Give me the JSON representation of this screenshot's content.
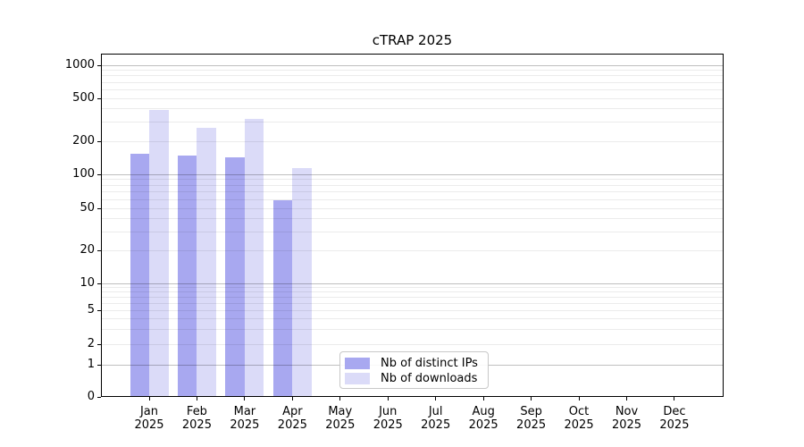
{
  "figure": {
    "background": "#ffffff"
  },
  "chart_data": {
    "type": "bar",
    "title": "cTRAP 2025",
    "xlabel": "",
    "ylabel": "",
    "year": "2025",
    "months": [
      "Jan",
      "Feb",
      "Mar",
      "Apr",
      "May",
      "Jun",
      "Jul",
      "Aug",
      "Sep",
      "Oct",
      "Nov",
      "Dec"
    ],
    "categories": [
      "Jan 2025",
      "Feb 2025",
      "Mar 2025",
      "Apr 2025",
      "May 2025",
      "Jun 2025",
      "Jul 2025",
      "Aug 2025",
      "Sep 2025",
      "Oct 2025",
      "Nov 2025",
      "Dec 2025"
    ],
    "series": [
      {
        "name": "Nb of distinct IPs",
        "color": "#a8a8f0",
        "values": [
          155,
          148,
          144,
          59,
          0,
          0,
          0,
          0,
          0,
          0,
          0,
          0
        ]
      },
      {
        "name": "Nb of downloads",
        "color": "#dbdbf8",
        "values": [
          390,
          265,
          320,
          115,
          0,
          0,
          0,
          0,
          0,
          0,
          0,
          0
        ]
      }
    ],
    "yscale": "symlog",
    "yticks": [
      0,
      1,
      2,
      5,
      10,
      20,
      50,
      100,
      200,
      500,
      1000
    ],
    "ylim": [
      0,
      1280
    ],
    "grid": true,
    "legend_position": "lower center"
  }
}
